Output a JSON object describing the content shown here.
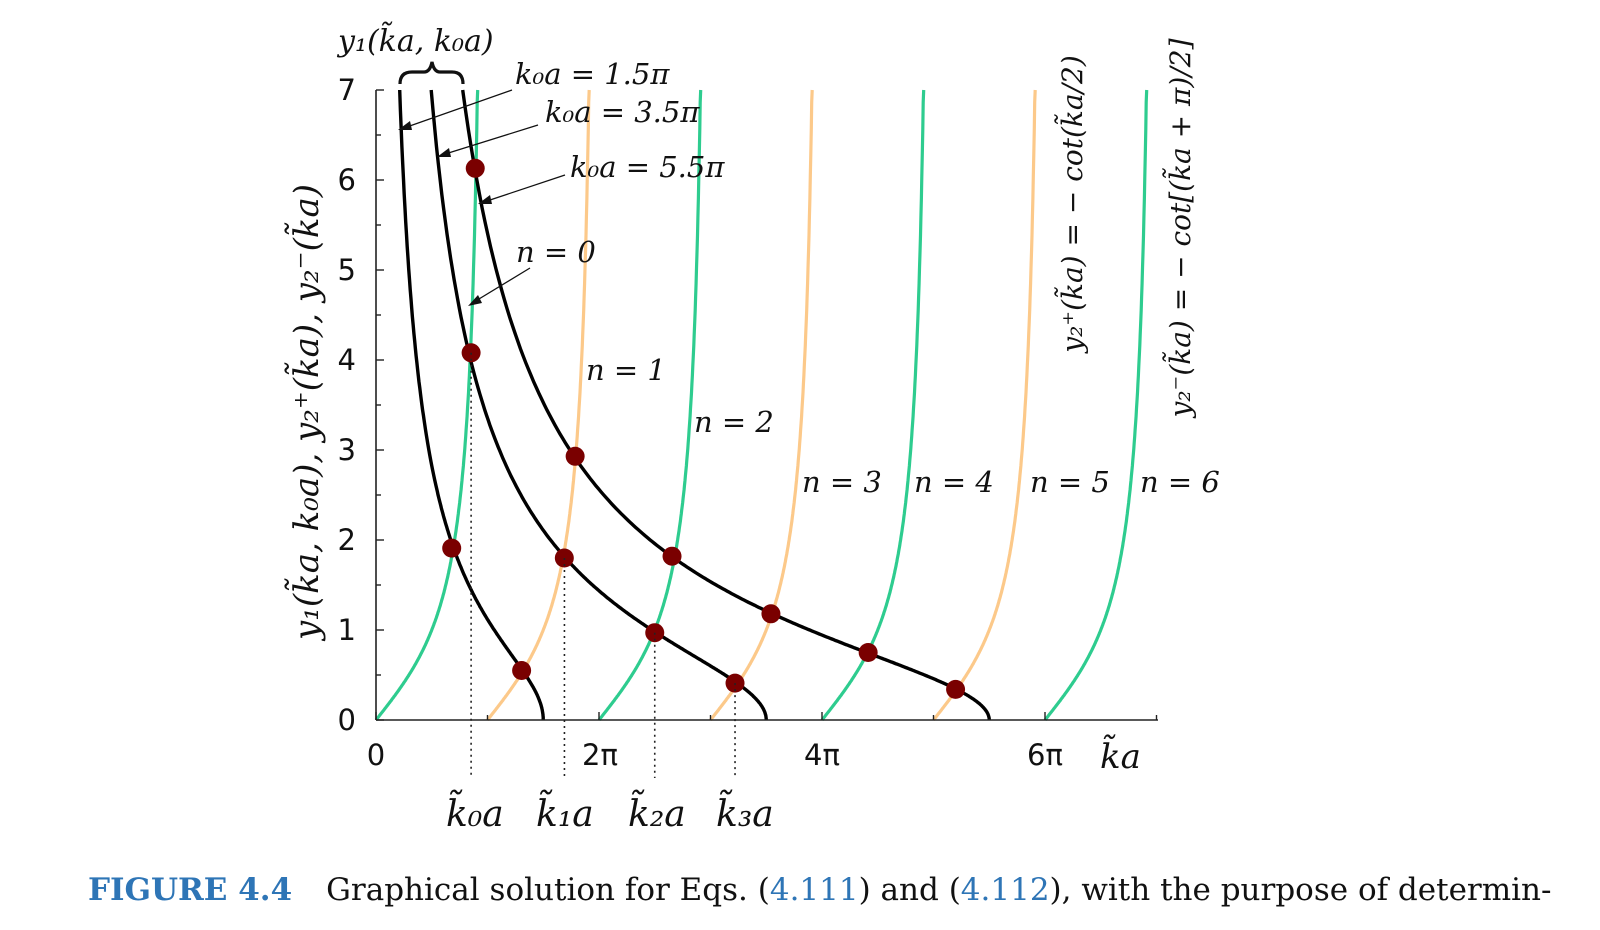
{
  "figure": {
    "number": "FIGURE 4.4",
    "caption_before": "Graphical solution for Eqs. (",
    "ref1": "4.111",
    "caption_mid": ") and (",
    "ref2": "4.112",
    "caption_after": "), with the purpose of determin-"
  },
  "chart_data": {
    "type": "line",
    "ylabel": "y₁(k̃a, k₀a),  y₂⁺(k̃a),  y₂⁻(k̃a)",
    "xlabel": "k̃a",
    "xlim": [
      0,
      7
    ],
    "ylim": [
      0,
      7
    ],
    "y_ticks": [
      "0",
      "1",
      "2",
      "3",
      "4",
      "5",
      "6",
      "7"
    ],
    "x_ticks": [
      "0",
      "2π",
      "4π",
      "6π"
    ],
    "bracket_label": "y₁(k̃a, k₀a)",
    "k0a_labels": [
      "k₀a = 1.5π",
      "k₀a = 3.5π",
      "k₀a = 5.5π"
    ],
    "k0a_values": [
      1.5,
      3.5,
      5.5
    ],
    "n_labels": [
      "n = 0",
      "n = 1",
      "n = 2",
      "n = 3",
      "n = 4",
      "n = 5",
      "n = 6"
    ],
    "branch_label_plus": "y₂⁺(k̃a) = − cot(k̃a/2)",
    "branch_label_minus": "y₂⁻(k̃a) = − cot[(k̃a + π)/2]",
    "kn_labels": [
      "k̃₀a",
      "k̃₁a",
      "k̃₂a",
      "k̃₃a"
    ],
    "kn_values": [
      0.853,
      1.69,
      2.5,
      3.22
    ],
    "colors": {
      "y2_plus": "#2ecc8f",
      "y2_minus": "#fcc98a",
      "y1": "#000000",
      "intersection": "#7a0000"
    },
    "intersections": [
      {
        "x": 0.679,
        "y": 1.91
      },
      {
        "x": 1.306,
        "y": 0.55
      },
      {
        "x": 0.853,
        "y": 4.08
      },
      {
        "x": 1.689,
        "y": 1.8
      },
      {
        "x": 2.5,
        "y": 0.97
      },
      {
        "x": 3.22,
        "y": 0.41
      },
      {
        "x": 0.89,
        "y": 6.13
      },
      {
        "x": 1.786,
        "y": 2.93
      },
      {
        "x": 2.655,
        "y": 1.82
      },
      {
        "x": 3.542,
        "y": 1.18
      },
      {
        "x": 4.414,
        "y": 0.75
      },
      {
        "x": 5.198,
        "y": 0.34
      }
    ]
  }
}
